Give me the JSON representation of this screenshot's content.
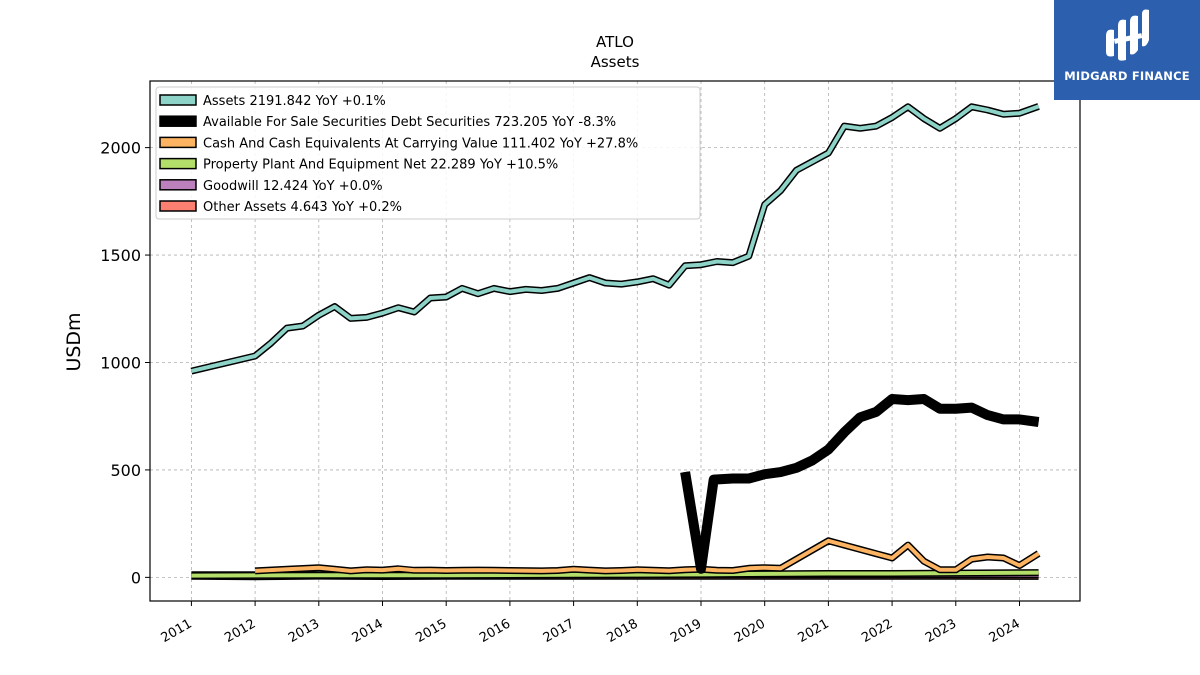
{
  "brand": {
    "name": "MIDGARD FINANCE",
    "bg_color": "#2c5fad"
  },
  "chart_data": {
    "type": "line",
    "title": "ATLO",
    "subtitle": "Assets",
    "ylabel": "USDm",
    "xlabel": "",
    "ylim": [
      -110,
      2310
    ],
    "xlim": [
      2010.35,
      2024.95
    ],
    "yticks": [
      0,
      500,
      1000,
      1500,
      2000
    ],
    "xticks": [
      "2011",
      "2012",
      "2013",
      "2014",
      "2015",
      "2016",
      "2017",
      "2018",
      "2019",
      "2020",
      "2021",
      "2022",
      "2023",
      "2024"
    ],
    "grid": true,
    "legend_position": "top-left",
    "series": [
      {
        "name": "Assets",
        "legend": "Assets  2191.842 YoY +0.1%",
        "color": "#8dd3c7",
        "width": 4,
        "points": [
          [
            2011.0,
            960
          ],
          [
            2012.0,
            1030
          ],
          [
            2012.25,
            1090
          ],
          [
            2012.5,
            1160
          ],
          [
            2012.75,
            1170
          ],
          [
            2013.0,
            1220
          ],
          [
            2013.25,
            1260
          ],
          [
            2013.5,
            1205
          ],
          [
            2013.75,
            1210
          ],
          [
            2014.0,
            1230
          ],
          [
            2014.25,
            1255
          ],
          [
            2014.5,
            1235
          ],
          [
            2014.75,
            1300
          ],
          [
            2015.0,
            1305
          ],
          [
            2015.25,
            1345
          ],
          [
            2015.5,
            1320
          ],
          [
            2015.75,
            1345
          ],
          [
            2016.0,
            1330
          ],
          [
            2016.25,
            1340
          ],
          [
            2016.5,
            1335
          ],
          [
            2016.75,
            1345
          ],
          [
            2017.0,
            1370
          ],
          [
            2017.25,
            1395
          ],
          [
            2017.5,
            1370
          ],
          [
            2017.75,
            1365
          ],
          [
            2018.0,
            1375
          ],
          [
            2018.25,
            1390
          ],
          [
            2018.5,
            1360
          ],
          [
            2018.75,
            1450
          ],
          [
            2019.0,
            1455
          ],
          [
            2019.25,
            1470
          ],
          [
            2019.5,
            1465
          ],
          [
            2019.75,
            1495
          ],
          [
            2020.0,
            1735
          ],
          [
            2020.25,
            1800
          ],
          [
            2020.5,
            1895
          ],
          [
            2020.75,
            1935
          ],
          [
            2021.0,
            1975
          ],
          [
            2021.25,
            2100
          ],
          [
            2021.5,
            2090
          ],
          [
            2021.75,
            2100
          ],
          [
            2022.0,
            2140
          ],
          [
            2022.25,
            2190
          ],
          [
            2022.5,
            2135
          ],
          [
            2022.75,
            2090
          ],
          [
            2023.0,
            2135
          ],
          [
            2023.25,
            2190
          ],
          [
            2023.5,
            2175
          ],
          [
            2023.75,
            2155
          ],
          [
            2024.0,
            2160
          ],
          [
            2024.3,
            2192
          ]
        ]
      },
      {
        "name": "Available For Sale Securities Debt Securities",
        "legend": "Available For Sale Securities Debt Securities  723.205 YoY -8.3%",
        "color": "#000000",
        "width": 7,
        "points": [
          [
            2018.75,
            490
          ],
          [
            2019.0,
            40
          ],
          [
            2019.2,
            455
          ],
          [
            2019.5,
            460
          ],
          [
            2019.75,
            460
          ],
          [
            2020.0,
            480
          ],
          [
            2020.25,
            490
          ],
          [
            2020.5,
            510
          ],
          [
            2020.75,
            545
          ],
          [
            2021.0,
            595
          ],
          [
            2021.25,
            675
          ],
          [
            2021.5,
            745
          ],
          [
            2021.75,
            770
          ],
          [
            2022.0,
            830
          ],
          [
            2022.25,
            825
          ],
          [
            2022.5,
            830
          ],
          [
            2022.75,
            785
          ],
          [
            2023.0,
            785
          ],
          [
            2023.25,
            790
          ],
          [
            2023.5,
            755
          ],
          [
            2023.75,
            735
          ],
          [
            2024.0,
            735
          ],
          [
            2024.3,
            723
          ]
        ]
      },
      {
        "name": "Cash And Cash Equivalents At Carrying Value",
        "legend": "Cash And Cash Equivalents At Carrying Value  111.402 YoY +27.8%",
        "color": "#fdb462",
        "width": 4,
        "points": [
          [
            2012.0,
            30
          ],
          [
            2012.5,
            38
          ],
          [
            2013.0,
            45
          ],
          [
            2013.25,
            38
          ],
          [
            2013.5,
            30
          ],
          [
            2013.75,
            35
          ],
          [
            2014.0,
            34
          ],
          [
            2014.25,
            40
          ],
          [
            2014.5,
            33
          ],
          [
            2014.75,
            34
          ],
          [
            2015.0,
            32
          ],
          [
            2015.25,
            33
          ],
          [
            2015.5,
            34
          ],
          [
            2015.75,
            33
          ],
          [
            2016.0,
            32
          ],
          [
            2016.5,
            30
          ],
          [
            2016.75,
            32
          ],
          [
            2017.0,
            38
          ],
          [
            2017.25,
            34
          ],
          [
            2017.5,
            30
          ],
          [
            2017.75,
            32
          ],
          [
            2018.0,
            35
          ],
          [
            2018.25,
            33
          ],
          [
            2018.5,
            31
          ],
          [
            2018.75,
            35
          ],
          [
            2019.0,
            38
          ],
          [
            2019.25,
            33
          ],
          [
            2019.5,
            32
          ],
          [
            2019.75,
            42
          ],
          [
            2020.0,
            45
          ],
          [
            2020.25,
            42
          ],
          [
            2021.0,
            170
          ],
          [
            2021.25,
            150
          ],
          [
            2021.5,
            130
          ],
          [
            2021.75,
            110
          ],
          [
            2022.0,
            90
          ],
          [
            2022.25,
            150
          ],
          [
            2022.5,
            75
          ],
          [
            2022.75,
            35
          ],
          [
            2023.0,
            35
          ],
          [
            2023.25,
            85
          ],
          [
            2023.5,
            95
          ],
          [
            2023.75,
            90
          ],
          [
            2024.0,
            55
          ],
          [
            2024.3,
            111
          ]
        ]
      },
      {
        "name": "Property Plant And Equipment Net",
        "legend": "Property Plant And Equipment Net  22.289 YoY +10.5%",
        "color": "#b3de69",
        "width": 4,
        "points": [
          [
            2011.0,
            8
          ],
          [
            2013.0,
            10
          ],
          [
            2015.0,
            10
          ],
          [
            2017.0,
            12
          ],
          [
            2019.0,
            14
          ],
          [
            2020.0,
            16
          ],
          [
            2021.0,
            18
          ],
          [
            2022.0,
            18
          ],
          [
            2023.0,
            20
          ],
          [
            2024.3,
            22
          ]
        ]
      },
      {
        "name": "Goodwill",
        "legend": "Goodwill  12.424 YoY +0.0%",
        "color": "#bc80bd",
        "width": 4,
        "points": [
          [
            2011.0,
            12
          ],
          [
            2013.0,
            12
          ],
          [
            2016.0,
            12
          ],
          [
            2019.0,
            12
          ],
          [
            2022.0,
            12
          ],
          [
            2024.3,
            12.4
          ]
        ]
      },
      {
        "name": "Other Assets",
        "legend": "Other Assets  4.643 YoY +0.2%",
        "color": "#fb8072",
        "width": 4,
        "points": [
          [
            2011.0,
            5
          ],
          [
            2012.0,
            3
          ],
          [
            2013.0,
            6
          ],
          [
            2014.0,
            4
          ],
          [
            2015.0,
            5
          ],
          [
            2016.0,
            5
          ],
          [
            2017.0,
            5
          ],
          [
            2018.0,
            5
          ],
          [
            2019.0,
            5
          ],
          [
            2020.0,
            5
          ],
          [
            2021.0,
            5
          ],
          [
            2022.0,
            5
          ],
          [
            2023.0,
            5
          ],
          [
            2024.3,
            4.6
          ]
        ]
      }
    ]
  }
}
